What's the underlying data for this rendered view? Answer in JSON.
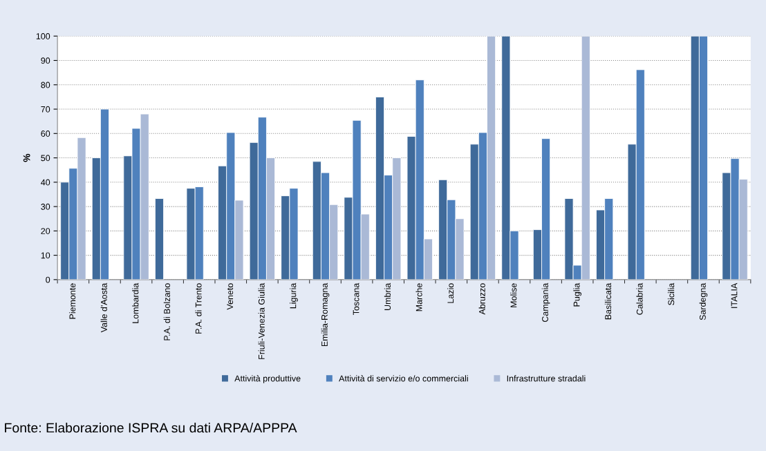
{
  "chart_data": {
    "type": "bar",
    "ylabel": "%",
    "categories": [
      "Piemonte",
      "Valle d'Aosta",
      "Lombardia",
      "P.A. di Bolzano",
      "P.A. di Trento",
      "Veneto",
      "Friuli-Venezia Giulia",
      "Liguria",
      "Emilia-Romagna",
      "Toscana",
      "Umbria",
      "Marche",
      "Lazio",
      "Abruzzo",
      "Molise",
      "Campania",
      "Puglia",
      "Basilicata",
      "Calabria",
      "Sicilia",
      "Sardegna",
      "ITALIA"
    ],
    "series": [
      {
        "name": "Attività produttive",
        "color": "#3f6a9a",
        "values": [
          40,
          50,
          50.8,
          33.3,
          37.5,
          46.7,
          56.3,
          34.4,
          48.5,
          33.8,
          75,
          58.8,
          41,
          55.6,
          100,
          20.5,
          33.3,
          28.6,
          55.6,
          null,
          100,
          43.9
        ]
      },
      {
        "name": "Attività di servizio e/o commerciali",
        "color": "#4f81bd",
        "values": [
          45.7,
          70,
          62.1,
          null,
          38.1,
          60.4,
          66.7,
          37.5,
          43.9,
          65.4,
          42.9,
          82,
          32.8,
          60.4,
          20,
          57.9,
          5.9,
          33.3,
          86.2,
          null,
          100,
          49.7
        ]
      },
      {
        "name": "Infrastrutture stradali",
        "color": "#aab9d6",
        "values": [
          58.3,
          null,
          68,
          null,
          null,
          32.6,
          50,
          null,
          30.8,
          26.9,
          50,
          16.7,
          25,
          100,
          null,
          null,
          100,
          null,
          null,
          null,
          null,
          41.2
        ]
      }
    ],
    "ylim": [
      0,
      100
    ],
    "yticks": [
      0,
      10,
      20,
      30,
      40,
      50,
      60,
      70,
      80,
      90,
      100
    ],
    "grid": "y",
    "legend": "bottom",
    "annotations": [
      "Fonte: Elaborazione ISPRA su dati ARPA/APPPA"
    ]
  }
}
